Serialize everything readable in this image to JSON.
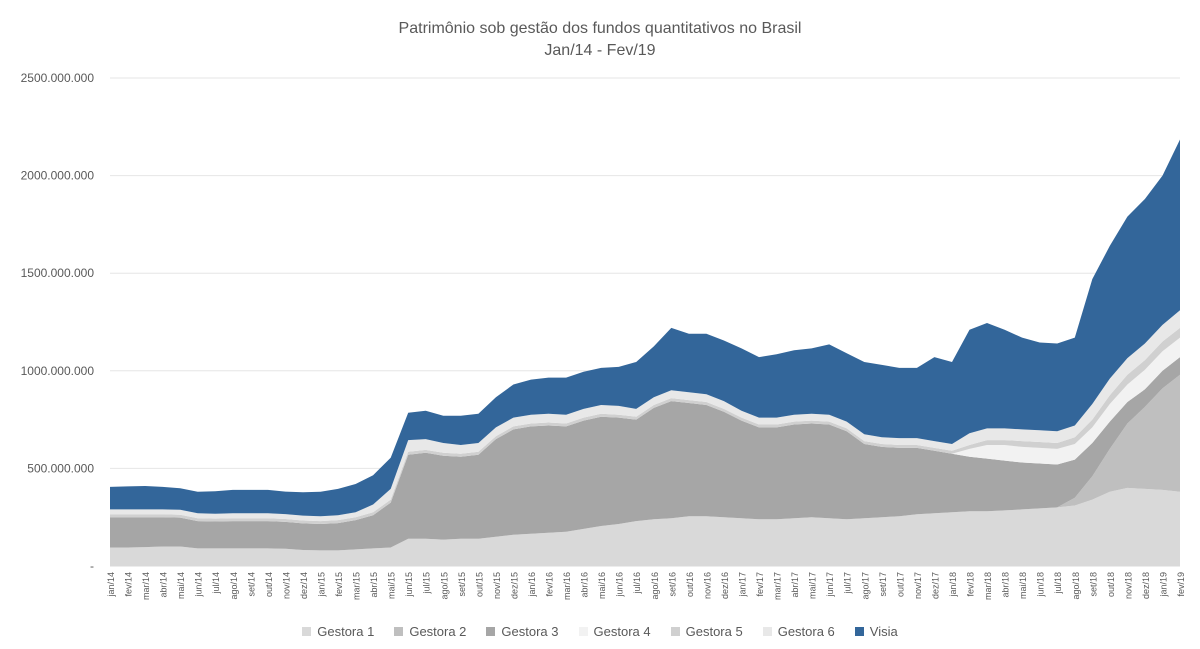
{
  "chart_data": {
    "type": "area",
    "stacked": true,
    "title": "Patrimônio sob gestão dos fundos quantitativos no Brasil",
    "subtitle": "Jan/14 - Fev/19",
    "xlabel": "",
    "ylabel": "",
    "ylim": [
      0,
      2500000000
    ],
    "yticks": [
      0,
      500000000,
      1000000000,
      1500000000,
      2000000000,
      2500000000
    ],
    "ytick_labels": [
      "-",
      "500.000.000",
      "1000.000.000",
      "1500.000.000",
      "2000.000.000",
      "2500.000.000"
    ],
    "grid": true,
    "legend_position": "bottom",
    "categories": [
      "jan/14",
      "fev/14",
      "mar/14",
      "abr/14",
      "mai/14",
      "jun/14",
      "jul/14",
      "ago/14",
      "set/14",
      "out/14",
      "nov/14",
      "dez/14",
      "jan/15",
      "fev/15",
      "mar/15",
      "abr/15",
      "mai/15",
      "jun/15",
      "jul/15",
      "ago/15",
      "set/15",
      "out/15",
      "nov/15",
      "dez/15",
      "jan/16",
      "fev/16",
      "mar/16",
      "abr/16",
      "mai/16",
      "jun/16",
      "jul/16",
      "ago/16",
      "set/16",
      "out/16",
      "nov/16",
      "dez/16",
      "jan/17",
      "fev/17",
      "mar/17",
      "abr/17",
      "mai/17",
      "jun/17",
      "jul/17",
      "ago/17",
      "set/17",
      "out/17",
      "nov/17",
      "dez/17",
      "jan/18",
      "fev/18",
      "mar/18",
      "abr/18",
      "mai/18",
      "jun/18",
      "jul/18",
      "ago/18",
      "set/18",
      "out/18",
      "nov/18",
      "dez/18",
      "jan/19",
      "fev/19"
    ],
    "series": [
      {
        "name": "Gestora 1",
        "color": "#d9d9d9",
        "values": [
          95000000,
          95000000,
          97000000,
          100000000,
          100000000,
          90000000,
          90000000,
          90000000,
          90000000,
          90000000,
          88000000,
          82000000,
          80000000,
          80000000,
          85000000,
          90000000,
          95000000,
          140000000,
          140000000,
          135000000,
          140000000,
          140000000,
          150000000,
          160000000,
          165000000,
          170000000,
          175000000,
          190000000,
          205000000,
          215000000,
          230000000,
          240000000,
          245000000,
          255000000,
          255000000,
          250000000,
          245000000,
          240000000,
          240000000,
          245000000,
          250000000,
          245000000,
          240000000,
          245000000,
          250000000,
          255000000,
          265000000,
          270000000,
          275000000,
          280000000,
          280000000,
          285000000,
          290000000,
          295000000,
          300000000,
          310000000,
          340000000,
          380000000,
          400000000,
          395000000,
          390000000,
          380000000
        ]
      },
      {
        "name": "Gestora 2",
        "color": "#bfbfbf",
        "values": [
          0,
          0,
          0,
          0,
          0,
          0,
          0,
          0,
          0,
          0,
          0,
          0,
          0,
          0,
          0,
          0,
          0,
          0,
          0,
          0,
          0,
          0,
          0,
          0,
          0,
          0,
          0,
          0,
          0,
          0,
          0,
          0,
          0,
          0,
          0,
          0,
          0,
          0,
          0,
          0,
          0,
          0,
          0,
          0,
          0,
          0,
          0,
          0,
          0,
          0,
          0,
          0,
          0,
          0,
          0,
          40000000,
          120000000,
          220000000,
          330000000,
          420000000,
          520000000,
          600000000
        ]
      },
      {
        "name": "Gestora 3",
        "color": "#a6a6a6",
        "values": [
          155000000,
          155000000,
          153000000,
          150000000,
          148000000,
          140000000,
          138000000,
          140000000,
          140000000,
          140000000,
          138000000,
          136000000,
          135000000,
          140000000,
          150000000,
          170000000,
          230000000,
          430000000,
          440000000,
          430000000,
          420000000,
          430000000,
          500000000,
          540000000,
          550000000,
          550000000,
          540000000,
          555000000,
          560000000,
          545000000,
          520000000,
          570000000,
          600000000,
          580000000,
          570000000,
          540000000,
          500000000,
          470000000,
          470000000,
          480000000,
          480000000,
          480000000,
          450000000,
          380000000,
          360000000,
          350000000,
          340000000,
          320000000,
          300000000,
          280000000,
          270000000,
          255000000,
          240000000,
          230000000,
          220000000,
          195000000,
          170000000,
          140000000,
          110000000,
          90000000,
          90000000,
          90000000
        ]
      },
      {
        "name": "Gestora 4",
        "color": "#f2f2f2",
        "values": [
          0,
          0,
          0,
          0,
          0,
          0,
          0,
          0,
          0,
          0,
          0,
          0,
          0,
          0,
          0,
          0,
          0,
          0,
          0,
          0,
          0,
          0,
          0,
          0,
          0,
          0,
          0,
          0,
          0,
          0,
          0,
          0,
          0,
          0,
          0,
          0,
          0,
          0,
          0,
          0,
          0,
          0,
          0,
          0,
          0,
          0,
          0,
          0,
          0,
          40000000,
          70000000,
          80000000,
          80000000,
          80000000,
          80000000,
          80000000,
          80000000,
          90000000,
          90000000,
          100000000,
          100000000,
          100000000
        ]
      },
      {
        "name": "Gestora 5",
        "color": "#d0d0d0",
        "values": [
          15000000,
          15000000,
          15000000,
          15000000,
          15000000,
          15000000,
          15000000,
          15000000,
          15000000,
          15000000,
          15000000,
          15000000,
          15000000,
          15000000,
          15000000,
          15000000,
          15000000,
          15000000,
          15000000,
          15000000,
          15000000,
          15000000,
          15000000,
          15000000,
          15000000,
          15000000,
          15000000,
          15000000,
          15000000,
          15000000,
          15000000,
          15000000,
          15000000,
          15000000,
          15000000,
          15000000,
          15000000,
          15000000,
          15000000,
          15000000,
          15000000,
          15000000,
          15000000,
          15000000,
          15000000,
          15000000,
          15000000,
          15000000,
          15000000,
          20000000,
          25000000,
          25000000,
          30000000,
          30000000,
          30000000,
          35000000,
          40000000,
          45000000,
          50000000,
          50000000,
          50000000,
          50000000
        ]
      },
      {
        "name": "Gestora 6",
        "color": "#e8e8e8",
        "values": [
          25000000,
          25000000,
          25000000,
          25000000,
          25000000,
          25000000,
          25000000,
          25000000,
          25000000,
          25000000,
          25000000,
          25000000,
          25000000,
          25000000,
          25000000,
          40000000,
          55000000,
          60000000,
          55000000,
          50000000,
          45000000,
          45000000,
          45000000,
          45000000,
          45000000,
          45000000,
          45000000,
          45000000,
          45000000,
          45000000,
          40000000,
          40000000,
          40000000,
          40000000,
          40000000,
          40000000,
          35000000,
          35000000,
          35000000,
          35000000,
          35000000,
          35000000,
          35000000,
          35000000,
          35000000,
          35000000,
          35000000,
          35000000,
          35000000,
          60000000,
          60000000,
          60000000,
          60000000,
          60000000,
          60000000,
          60000000,
          80000000,
          85000000,
          85000000,
          85000000,
          85000000,
          90000000
        ]
      },
      {
        "name": "Visia",
        "color": "#33669a",
        "values": [
          115000000,
          118000000,
          120000000,
          115000000,
          110000000,
          110000000,
          115000000,
          120000000,
          120000000,
          120000000,
          115000000,
          120000000,
          125000000,
          135000000,
          145000000,
          150000000,
          160000000,
          140000000,
          145000000,
          140000000,
          150000000,
          150000000,
          155000000,
          170000000,
          180000000,
          185000000,
          190000000,
          190000000,
          190000000,
          200000000,
          240000000,
          260000000,
          320000000,
          300000000,
          310000000,
          310000000,
          320000000,
          310000000,
          325000000,
          330000000,
          335000000,
          360000000,
          350000000,
          370000000,
          370000000,
          360000000,
          360000000,
          430000000,
          420000000,
          530000000,
          540000000,
          505000000,
          470000000,
          450000000,
          450000000,
          450000000,
          640000000,
          680000000,
          725000000,
          740000000,
          765000000,
          875000000
        ]
      }
    ]
  }
}
